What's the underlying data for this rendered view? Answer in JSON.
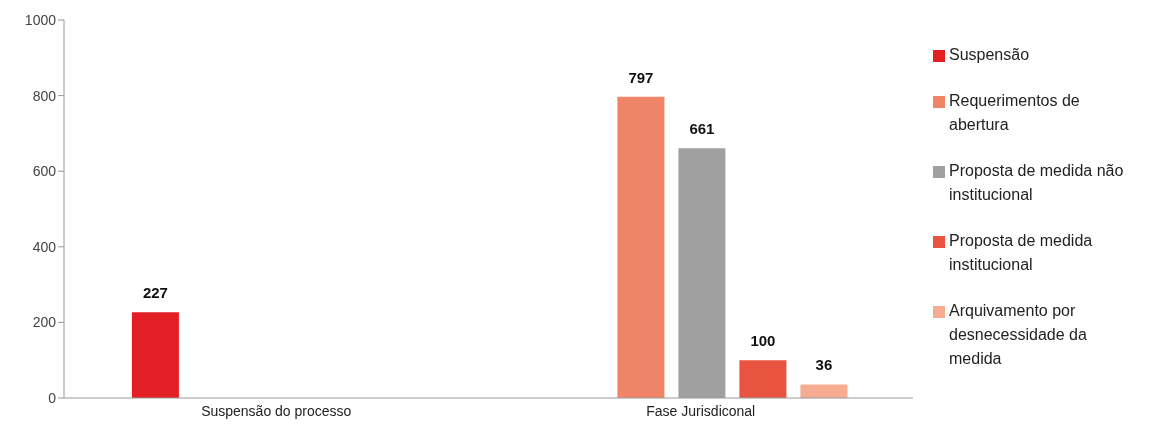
{
  "chart_data": {
    "type": "bar",
    "categories": [
      "Suspensão do processo",
      "Fase Jurisdiconal"
    ],
    "series": [
      {
        "name": "Suspensão",
        "color": "#e31e24",
        "values": [
          227,
          null
        ]
      },
      {
        "name": "Requerimentos de abertura",
        "color": "#f08466",
        "values": [
          null,
          797
        ]
      },
      {
        "name": "Proposta de medida não institucional",
        "color": "#a0a0a0",
        "values": [
          null,
          661
        ]
      },
      {
        "name": "Proposta de medida institucional",
        "color": "#e95440",
        "values": [
          null,
          100
        ]
      },
      {
        "name": "Arquivamento por desnecessidade da medida",
        "color": "#f5ac91",
        "values": [
          null,
          36
        ]
      }
    ],
    "ylim": [
      0,
      1000
    ],
    "yticks": [
      0,
      200,
      400,
      600,
      800,
      1000
    ],
    "grid": false,
    "legend": "right",
    "data_labels": true
  }
}
